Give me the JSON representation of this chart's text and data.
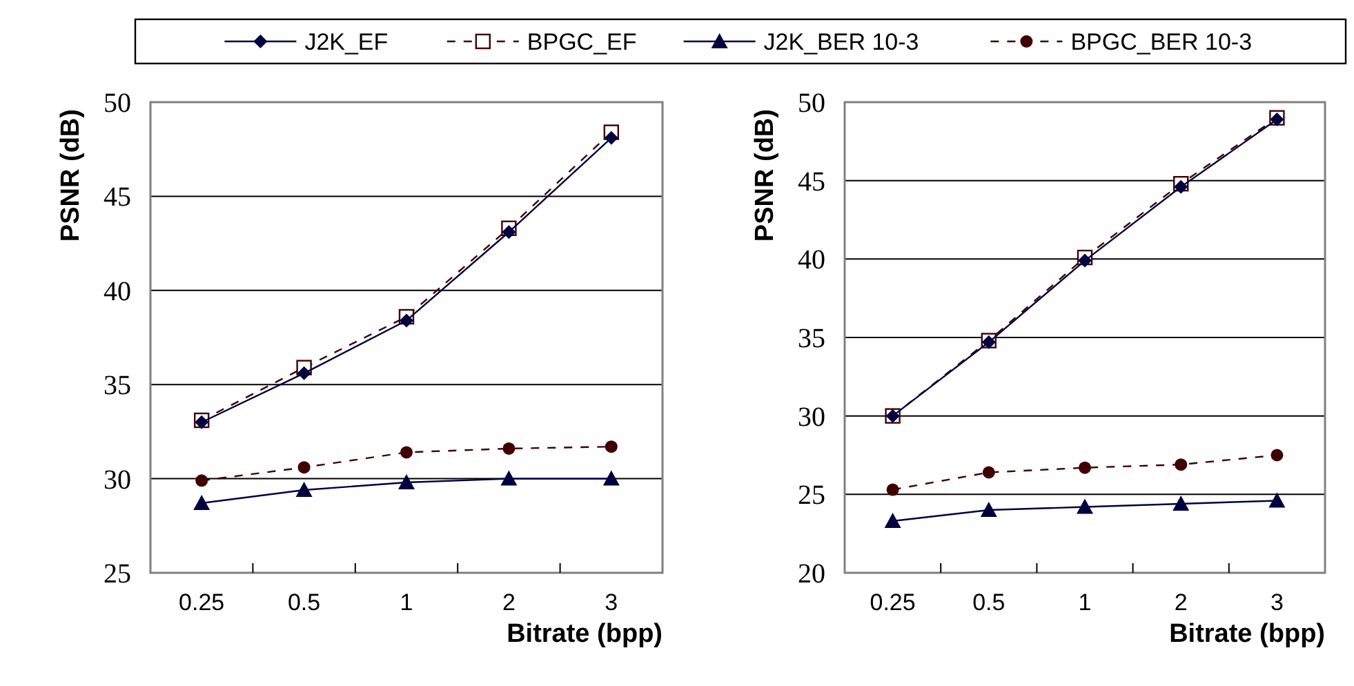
{
  "chart_data": [
    {
      "type": "line",
      "xlabel": "Bitrate (bpp)",
      "ylabel": "PSNR (dB)",
      "categories": [
        "0.25",
        "0.5",
        "1",
        "2",
        "3"
      ],
      "ylim": [
        25,
        50
      ],
      "yticks": [
        25,
        30,
        35,
        40,
        45,
        50
      ],
      "grid": "y",
      "legend": "top",
      "series": [
        {
          "name": "J2K_EF",
          "color": "#000040",
          "marker": "diamond",
          "line_style": "solid",
          "values": [
            33.0,
            35.6,
            38.4,
            43.1,
            48.1
          ]
        },
        {
          "name": "BPGC_EF",
          "color": "#400000",
          "marker": "square",
          "line_style": "dashed",
          "values": [
            33.1,
            35.9,
            38.6,
            43.3,
            48.4
          ]
        },
        {
          "name": "J2K_BER 10-3",
          "color": "#000040",
          "marker": "triangle",
          "line_style": "solid",
          "values": [
            28.7,
            29.4,
            29.8,
            30.0,
            30.0
          ]
        },
        {
          "name": "BPGC_BER 10-3",
          "color": "#400000",
          "marker": "circle",
          "line_style": "dashed",
          "values": [
            29.9,
            30.6,
            31.4,
            31.6,
            31.7
          ]
        }
      ]
    },
    {
      "type": "line",
      "xlabel": "Bitrate (bpp)",
      "ylabel": "PSNR (dB)",
      "categories": [
        "0.25",
        "0.5",
        "1",
        "2",
        "3"
      ],
      "ylim": [
        20,
        50
      ],
      "yticks": [
        20,
        25,
        30,
        35,
        40,
        45,
        50
      ],
      "grid": "y",
      "series": [
        {
          "color": "#000040",
          "marker": "diamond",
          "line_style": "solid",
          "values": [
            30.0,
            34.7,
            39.9,
            44.6,
            48.9
          ]
        },
        {
          "color": "#400000",
          "marker": "square",
          "line_style": "dashed",
          "values": [
            30.0,
            34.8,
            40.1,
            44.8,
            49.0
          ]
        },
        {
          "color": "#000040",
          "marker": "triangle",
          "line_style": "solid",
          "values": [
            23.3,
            24.0,
            24.2,
            24.4,
            24.6
          ]
        },
        {
          "color": "#400000",
          "marker": "circle",
          "line_style": "dashed",
          "values": [
            25.3,
            26.4,
            26.7,
            26.9,
            27.5
          ]
        }
      ]
    }
  ]
}
